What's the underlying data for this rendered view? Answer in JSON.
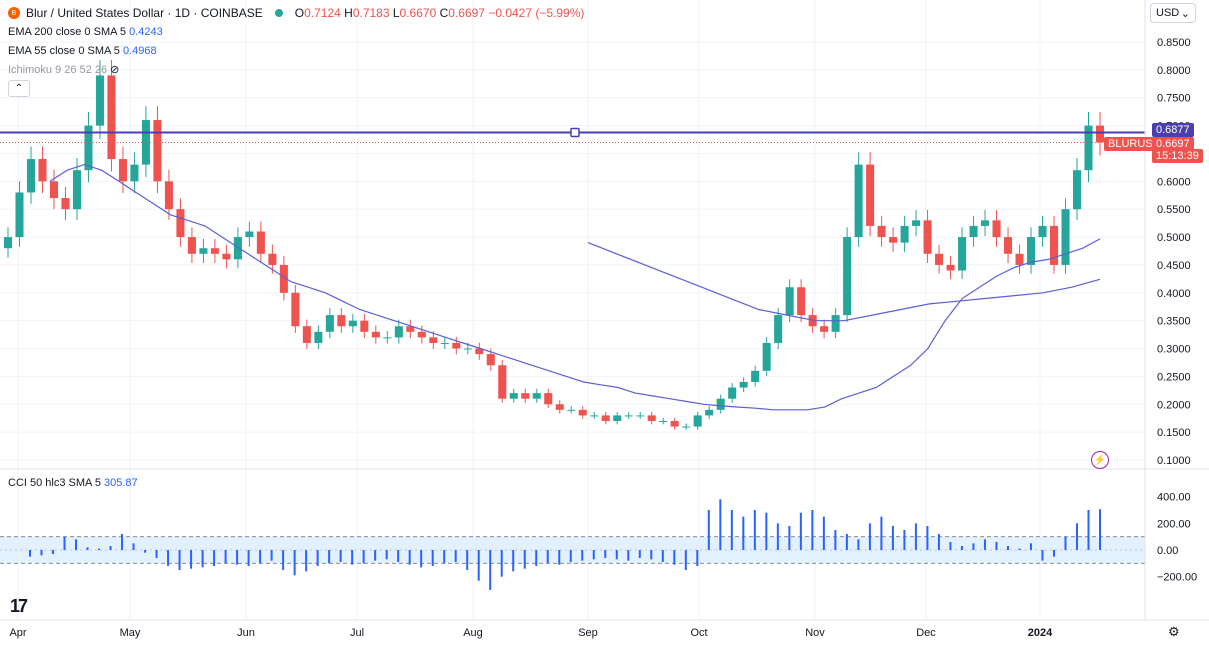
{
  "header": {
    "symbol_title": "Blur / United States Dollar · 1D · COINBASE",
    "open_label": "O",
    "open": "0.7124",
    "high_label": "H",
    "high": "0.7183",
    "low_label": "L",
    "low": "0.6670",
    "close_label": "C",
    "close": "0.6697",
    "change": "−0.0427 (−5.99%)"
  },
  "indicators": {
    "ema200_label": "EMA 200 close 0 SMA 5",
    "ema200_value": "0.4243",
    "ema55_label": "EMA 55 close 0 SMA 5",
    "ema55_value": "0.4968",
    "ichimoku_label": "Ichimoku 9 26 52 26",
    "cci_label": "CCI 50 hlc3 SMA 5",
    "cci_value": "305.87"
  },
  "currency": "USD",
  "price_axis": {
    "ticks": [
      "0.8500",
      "0.8000",
      "0.7500",
      "0.7000",
      "0.6500",
      "0.6000",
      "0.5500",
      "0.5000",
      "0.4500",
      "0.4000",
      "0.3500",
      "0.3000",
      "0.2500",
      "0.2000",
      "0.1500",
      "0.1000"
    ],
    "horizontal_line_label": "0.6877",
    "symbol_label": "BLURUSD",
    "last_price_label": "0.6697",
    "countdown": "15:13:39"
  },
  "cci_axis": {
    "ticks": [
      "400.00",
      "200.00",
      "0.00",
      "−200.00"
    ]
  },
  "time_axis": {
    "labels": [
      "Apr",
      "May",
      "Jun",
      "Jul",
      "Aug",
      "Sep",
      "Oct",
      "Nov",
      "Dec",
      "2024"
    ]
  },
  "colors": {
    "up": "#26a69a",
    "down": "#ef5350",
    "ema": "#5b5fd6",
    "hline": "#4b3fb0",
    "cci": "#2962ff",
    "band": "#e3f1ff"
  },
  "chart_data": {
    "type": "candlestick",
    "ylim": [
      0.1,
      0.85
    ],
    "horizontal_line": 0.6877,
    "last_price": 0.6697,
    "closes": [
      0.5,
      0.58,
      0.64,
      0.6,
      0.57,
      0.55,
      0.62,
      0.7,
      0.79,
      0.64,
      0.6,
      0.63,
      0.71,
      0.6,
      0.55,
      0.5,
      0.47,
      0.48,
      0.47,
      0.46,
      0.5,
      0.51,
      0.47,
      0.45,
      0.4,
      0.34,
      0.31,
      0.33,
      0.36,
      0.34,
      0.35,
      0.33,
      0.32,
      0.32,
      0.34,
      0.33,
      0.32,
      0.31,
      0.31,
      0.3,
      0.3,
      0.29,
      0.27,
      0.21,
      0.22,
      0.21,
      0.22,
      0.2,
      0.19,
      0.19,
      0.18,
      0.18,
      0.17,
      0.18,
      0.18,
      0.18,
      0.17,
      0.17,
      0.16,
      0.16,
      0.18,
      0.19,
      0.21,
      0.23,
      0.24,
      0.26,
      0.31,
      0.36,
      0.41,
      0.36,
      0.34,
      0.33,
      0.36,
      0.5,
      0.63,
      0.52,
      0.5,
      0.49,
      0.52,
      0.53,
      0.47,
      0.45,
      0.44,
      0.5,
      0.52,
      0.53,
      0.5,
      0.47,
      0.45,
      0.5,
      0.52,
      0.45,
      0.55,
      0.62,
      0.7,
      0.67
    ],
    "ema55": [
      0.6,
      0.62,
      0.63,
      0.62,
      0.6,
      0.58,
      0.56,
      0.54,
      0.53,
      0.52,
      0.5,
      0.48,
      0.46,
      0.44,
      0.42,
      0.41,
      0.4,
      0.385,
      0.37,
      0.36,
      0.35,
      0.34,
      0.33,
      0.32,
      0.31,
      0.3,
      0.29,
      0.28,
      0.27,
      0.26,
      0.25,
      0.24,
      0.235,
      0.23,
      0.22,
      0.215,
      0.21,
      0.205,
      0.2,
      0.197,
      0.195,
      0.193,
      0.19,
      0.19,
      0.19,
      0.195,
      0.21,
      0.22,
      0.23,
      0.25,
      0.27,
      0.3,
      0.35,
      0.39,
      0.41,
      0.43,
      0.445,
      0.455,
      0.46,
      0.47,
      0.48,
      0.4968
    ],
    "ema200": [
      0.49,
      0.47,
      0.45,
      0.43,
      0.41,
      0.39,
      0.37,
      0.36,
      0.35,
      0.35,
      0.36,
      0.37,
      0.38,
      0.385,
      0.39,
      0.395,
      0.4,
      0.41,
      0.4243
    ],
    "cci": [
      -50,
      -40,
      -30,
      100,
      80,
      20,
      10,
      30,
      120,
      50,
      -20,
      -60,
      -120,
      -150,
      -140,
      -130,
      -120,
      -100,
      -110,
      -120,
      -100,
      -80,
      -150,
      -190,
      -160,
      -120,
      -100,
      -90,
      -110,
      -100,
      -80,
      -70,
      -90,
      -110,
      -130,
      -120,
      -100,
      -90,
      -150,
      -230,
      -300,
      -200,
      -160,
      -140,
      -120,
      -100,
      -110,
      -90,
      -80,
      -70,
      -60,
      -70,
      -80,
      -60,
      -70,
      -90,
      -110,
      -150,
      -120,
      300,
      380,
      300,
      250,
      300,
      280,
      200,
      180,
      280,
      300,
      250,
      150,
      120,
      80,
      200,
      250,
      180,
      150,
      200,
      180,
      120,
      60,
      30,
      50,
      80,
      60,
      30,
      10,
      50,
      -80,
      -50,
      100,
      200,
      300,
      305.87
    ],
    "cci_ylim": [
      -300,
      450
    ],
    "cci_bands": [
      100,
      -100
    ]
  }
}
